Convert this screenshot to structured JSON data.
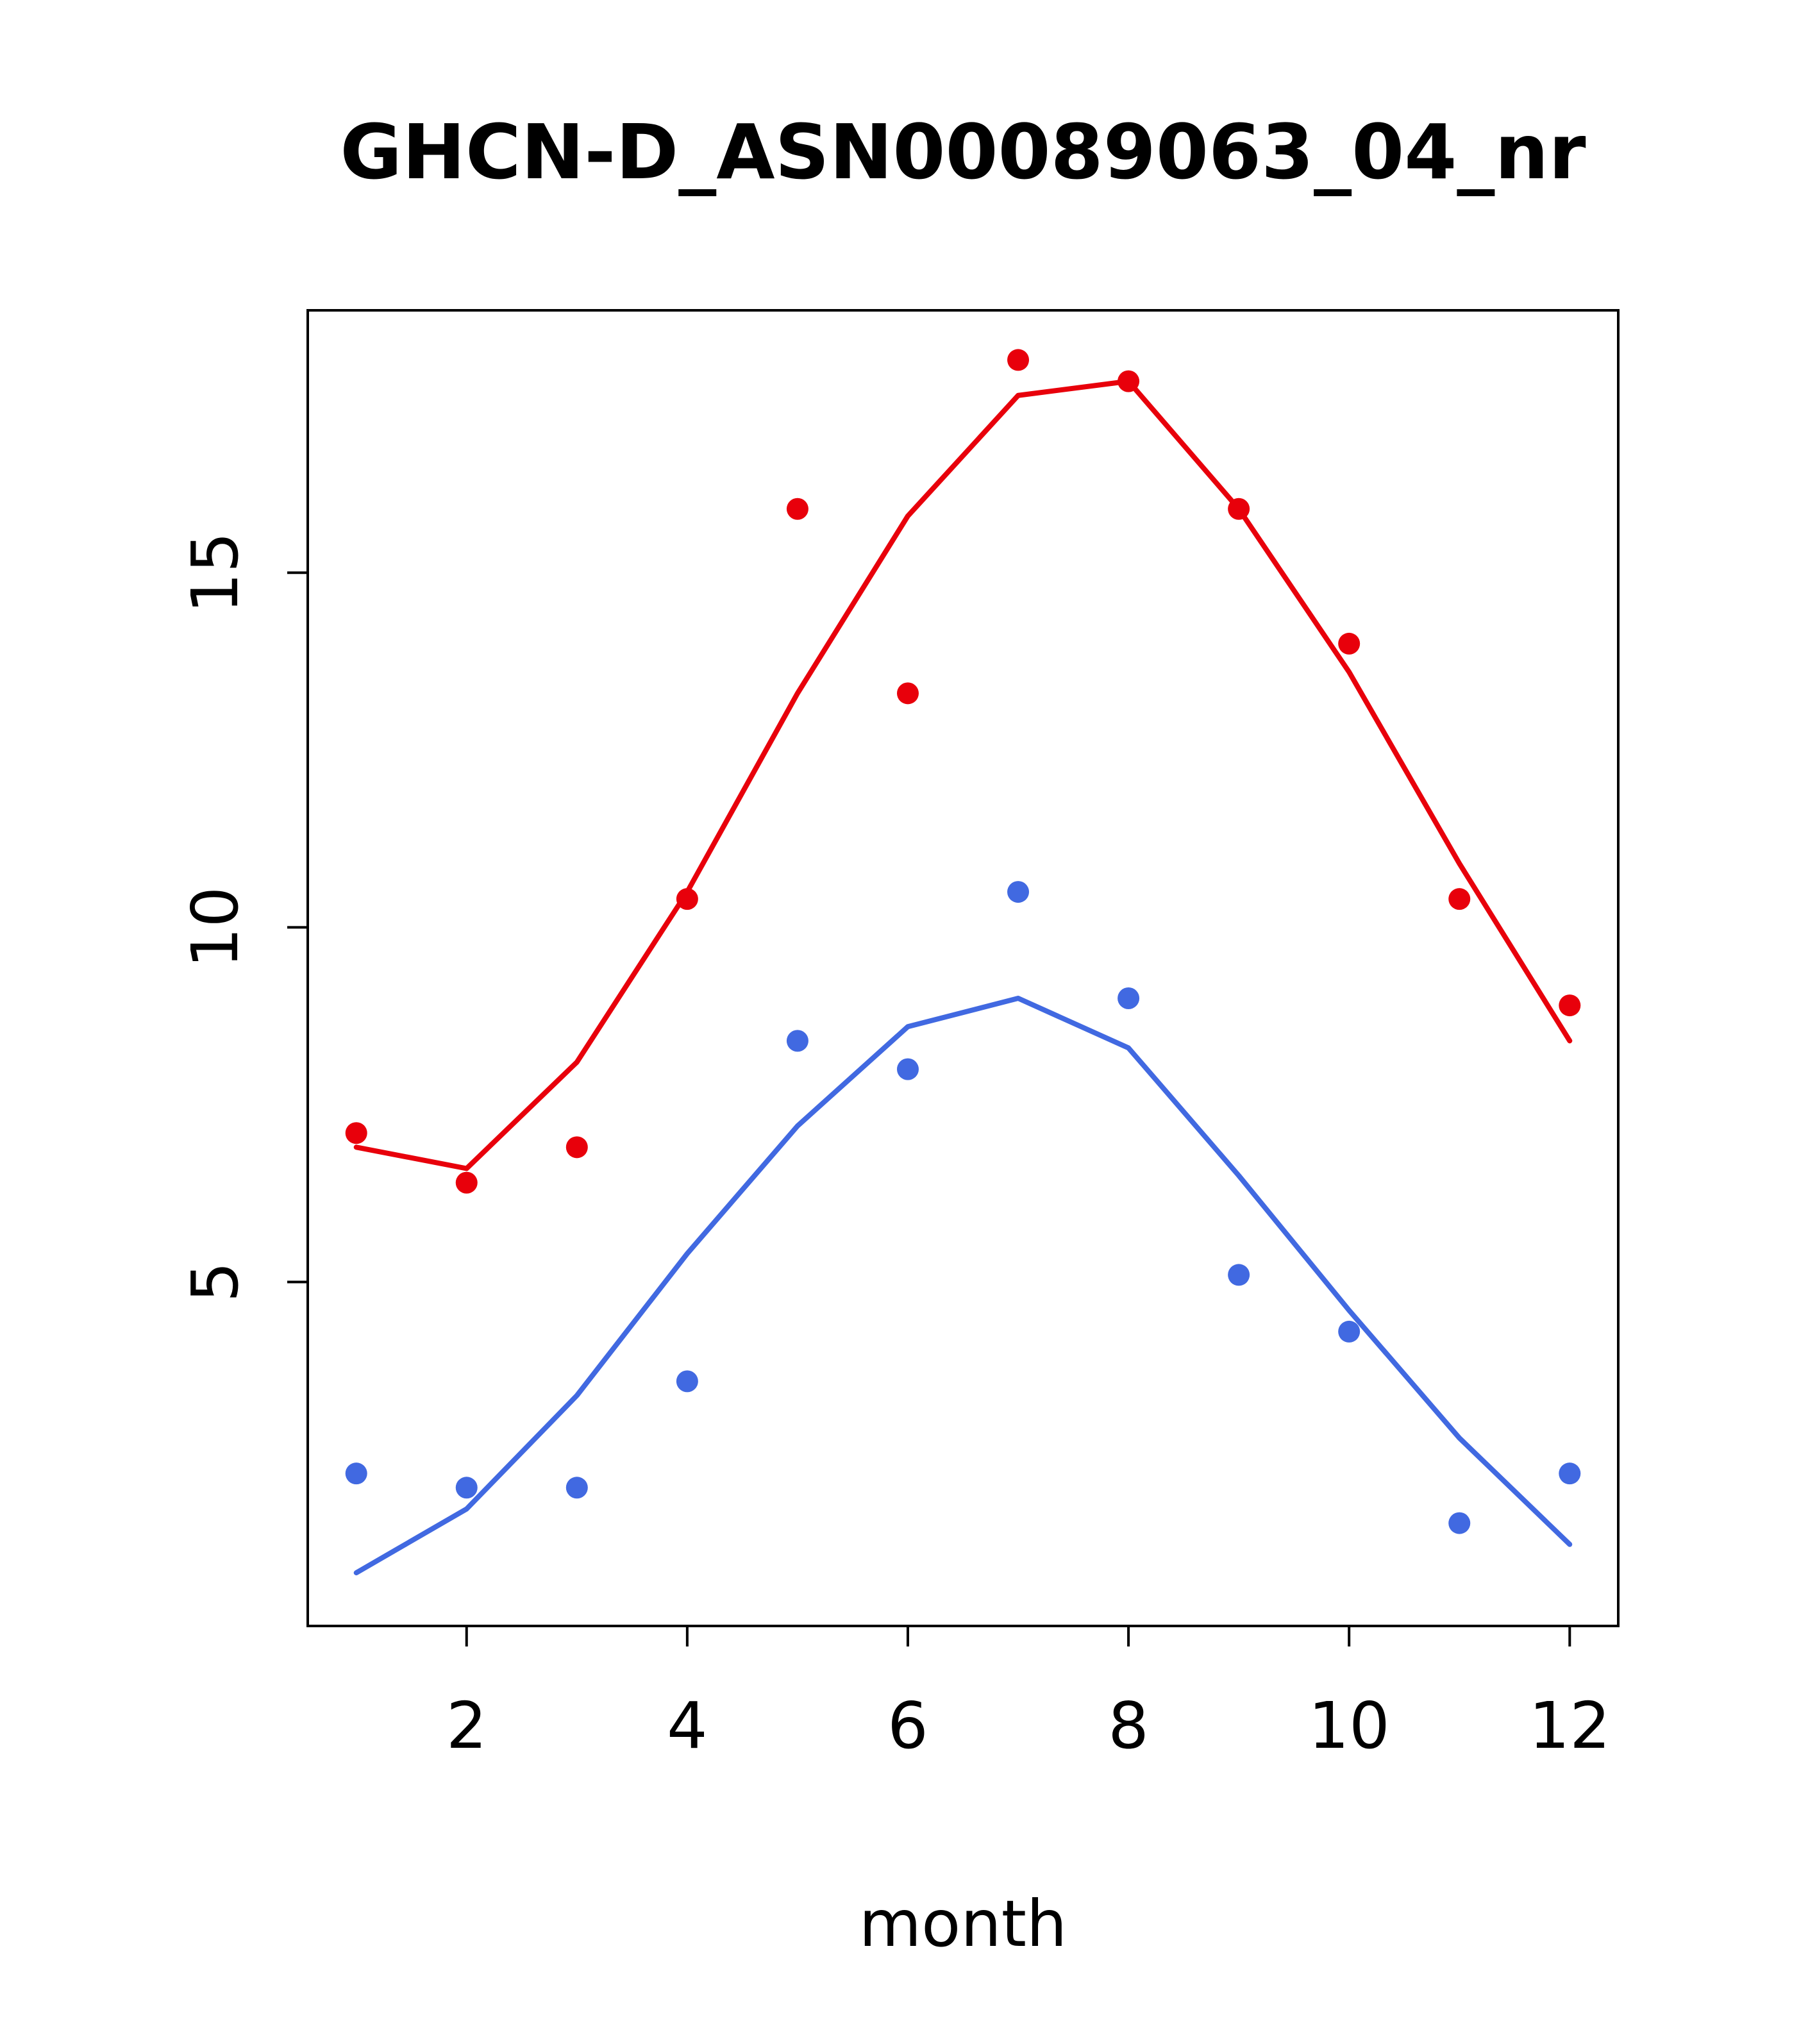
{
  "title": "GHCN-D_ASN00089063_04_nr",
  "xlabel": "month",
  "colors": {
    "red": "#e8000b",
    "blue": "#4169e1",
    "axis": "#000000",
    "background": "#ffffff"
  },
  "chart_data": {
    "type": "scatter",
    "title": "GHCN-D_ASN00089063_04_nr",
    "xlabel": "month",
    "ylabel": "",
    "x": [
      1,
      2,
      3,
      4,
      5,
      6,
      7,
      8,
      9,
      10,
      11,
      12
    ],
    "xticks": [
      2,
      4,
      6,
      8,
      10,
      12
    ],
    "yticks": [
      5,
      10,
      15
    ],
    "xlim": [
      0.56,
      12.44
    ],
    "ylim": [
      0.15,
      18.7
    ],
    "grid": false,
    "legend": "none",
    "series": [
      {
        "name": "red-points",
        "style": "points",
        "color": "red",
        "values": [
          7.1,
          6.4,
          6.9,
          10.4,
          15.9,
          13.3,
          18.0,
          17.7,
          15.9,
          14.0,
          10.4,
          8.9
        ]
      },
      {
        "name": "red-fit-line",
        "style": "line",
        "color": "red",
        "values": [
          6.9,
          6.6,
          8.1,
          10.5,
          13.3,
          15.8,
          17.5,
          17.7,
          15.9,
          13.6,
          10.9,
          8.4
        ]
      },
      {
        "name": "blue-points",
        "style": "points",
        "color": "blue",
        "values": [
          2.3,
          2.1,
          2.1,
          3.6,
          8.4,
          8.0,
          10.5,
          9.0,
          5.1,
          4.3,
          1.6,
          2.3
        ]
      },
      {
        "name": "blue-fit-line",
        "style": "line",
        "color": "blue",
        "values": [
          0.9,
          1.8,
          3.4,
          5.4,
          7.2,
          8.6,
          9.0,
          8.3,
          6.5,
          4.6,
          2.8,
          1.3
        ]
      }
    ]
  }
}
